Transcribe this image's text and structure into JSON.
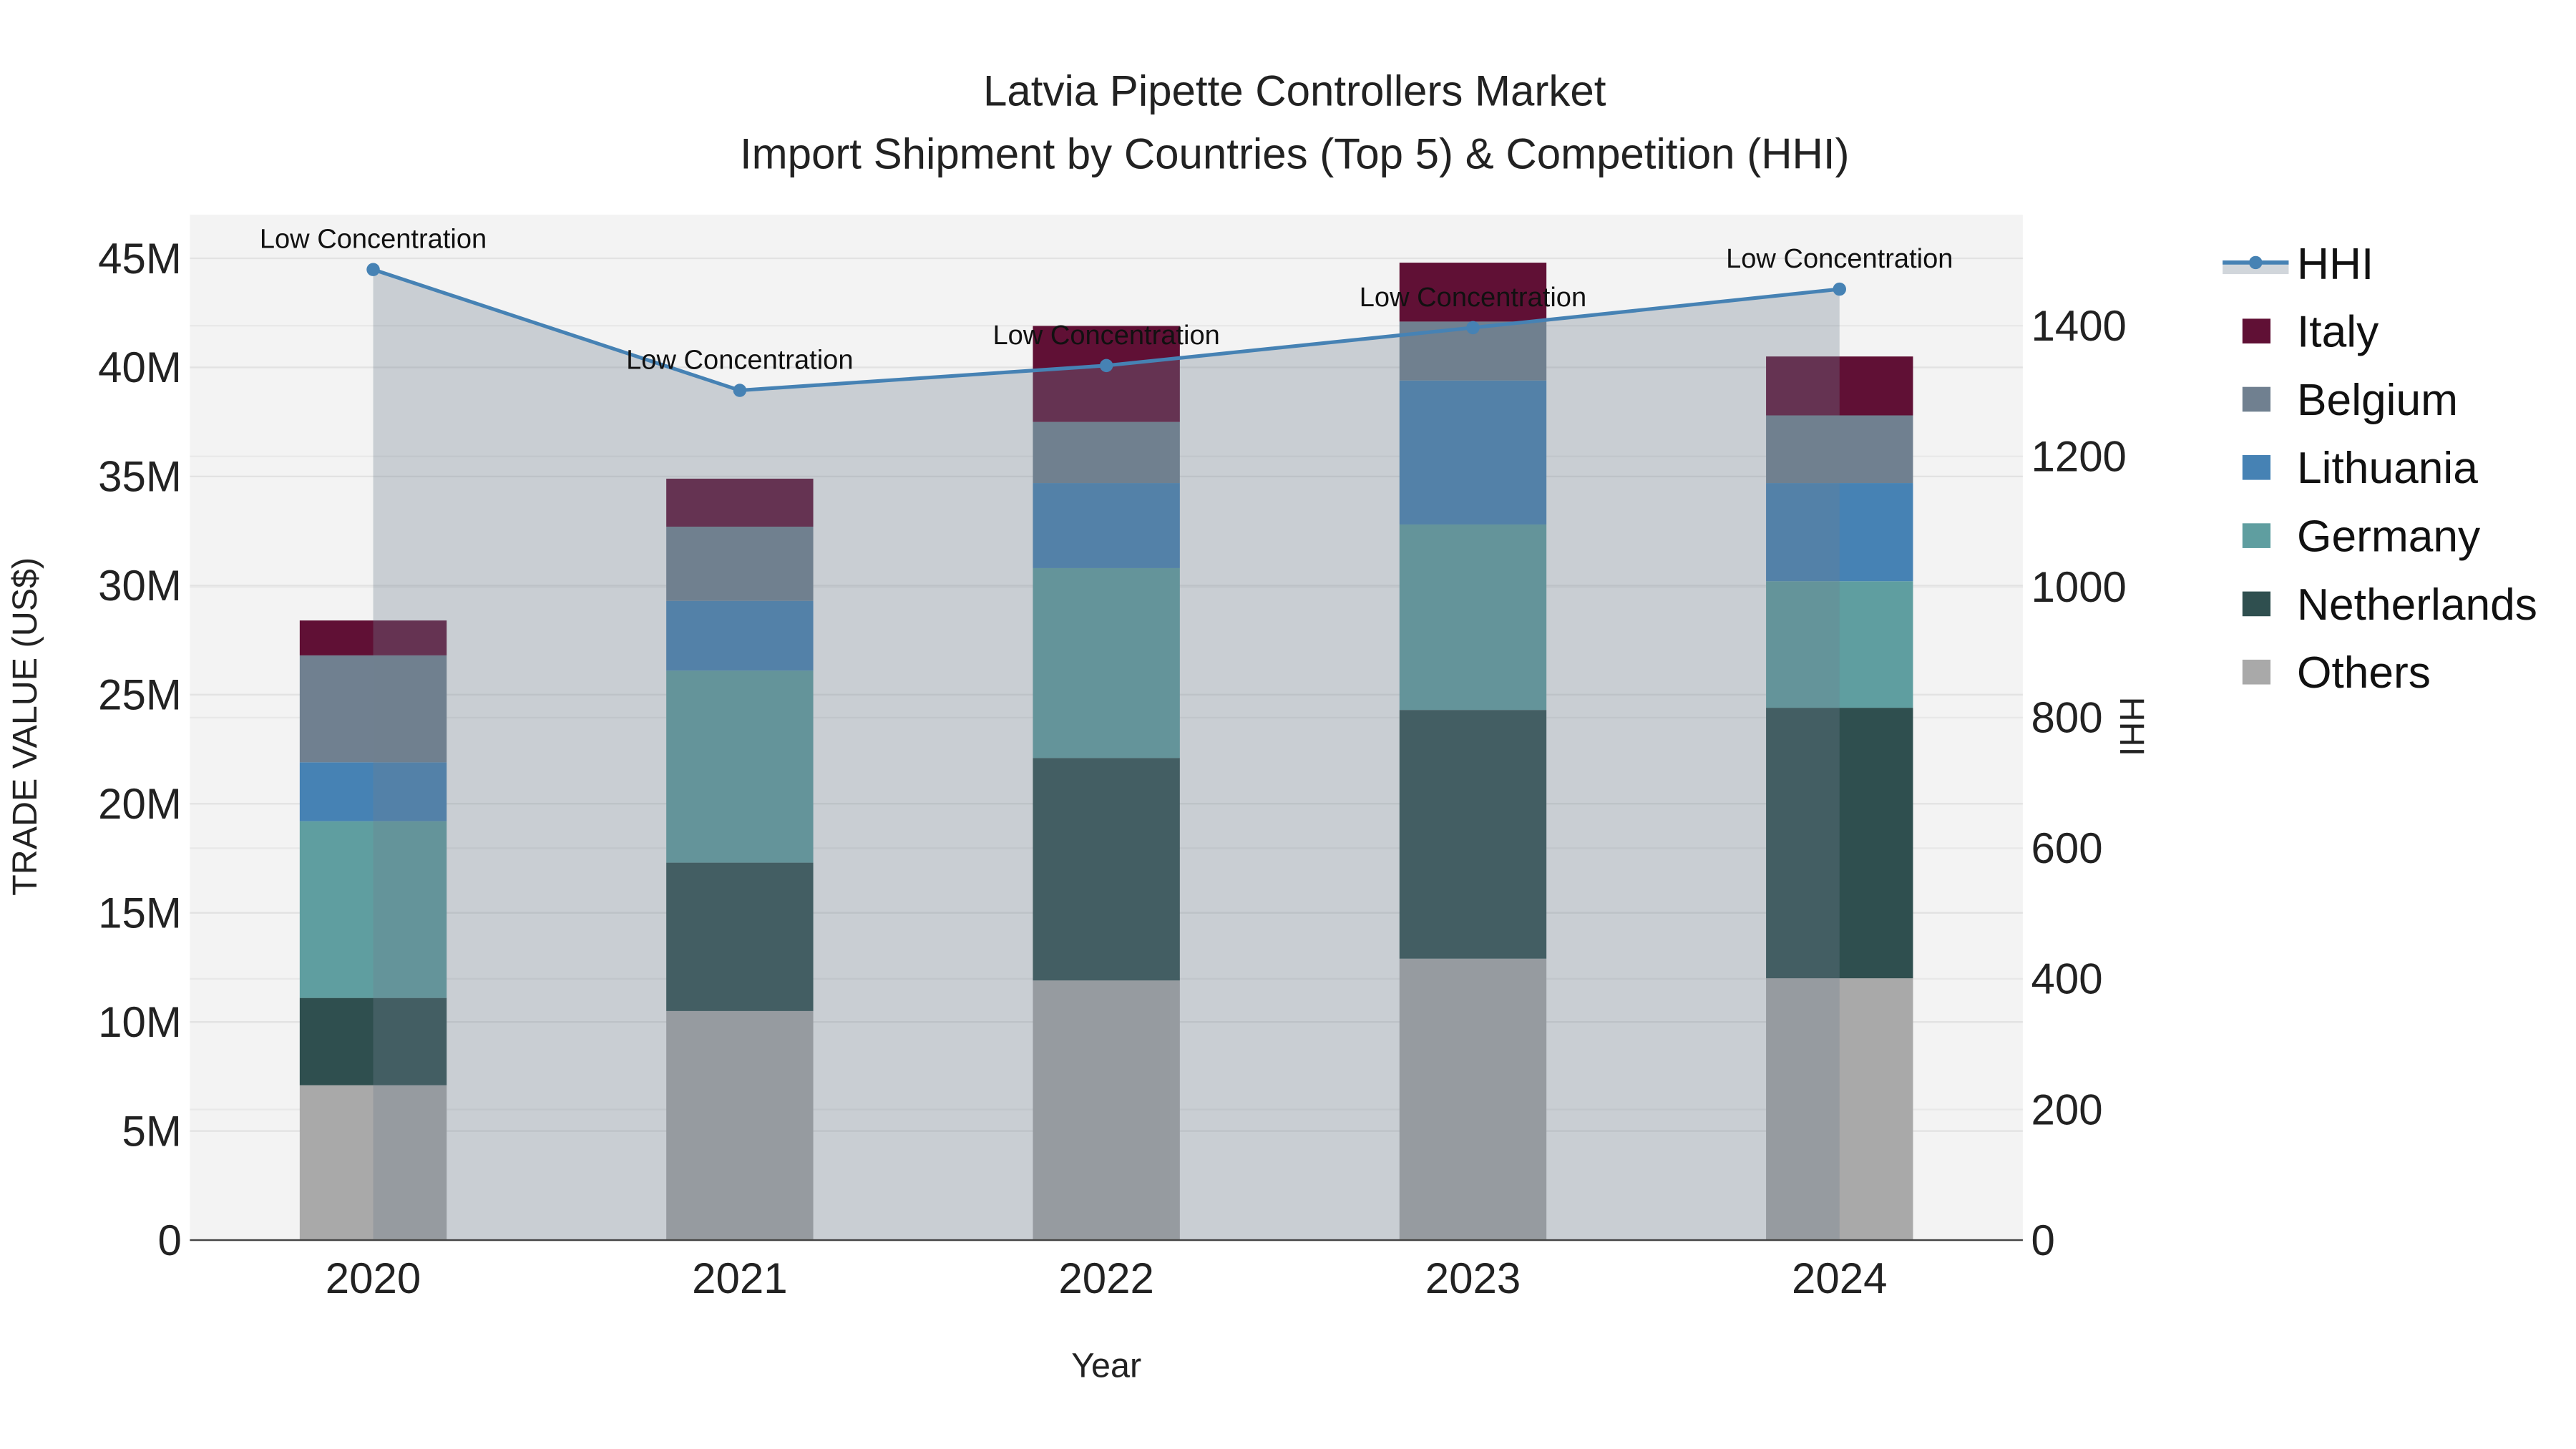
{
  "chart_data": {
    "type": "bar",
    "title": "Latvia Pipette Controllers Market",
    "subtitle": "Import Shipment by Countries (Top 5) & Competition (HHI)",
    "xlabel": "Year",
    "ylabel": "TRADE VALUE (US$)",
    "y2label": "HHI",
    "categories": [
      "2020",
      "2021",
      "2022",
      "2023",
      "2024"
    ],
    "ylim": [
      0,
      47
    ],
    "y_ticks": [
      0,
      5,
      10,
      15,
      20,
      25,
      30,
      35,
      40,
      45
    ],
    "y_tick_labels": [
      "0",
      "5M",
      "10M",
      "15M",
      "20M",
      "25M",
      "30M",
      "35M",
      "40M",
      "45M"
    ],
    "y2lim": [
      0,
      1570
    ],
    "y2_ticks": [
      0,
      200,
      400,
      600,
      800,
      1000,
      1200,
      1400
    ],
    "y2_tick_labels": [
      "0",
      "200",
      "400",
      "600",
      "800",
      "1000",
      "1200",
      "1400"
    ],
    "units": "million US$",
    "series": [
      {
        "name": "Others",
        "color": "#a9a9a9",
        "values": [
          7.1,
          10.5,
          11.9,
          12.9,
          12.0
        ]
      },
      {
        "name": "Netherlands",
        "color": "#2f4f4f",
        "values": [
          4.0,
          6.8,
          10.2,
          11.4,
          12.4
        ]
      },
      {
        "name": "Germany",
        "color": "#5f9ea0",
        "values": [
          8.1,
          8.8,
          8.7,
          8.5,
          5.8
        ]
      },
      {
        "name": "Lithuania",
        "color": "#4682b4",
        "values": [
          2.7,
          3.2,
          3.9,
          6.6,
          4.5
        ]
      },
      {
        "name": "Belgium",
        "color": "#708090",
        "values": [
          4.9,
          3.4,
          2.8,
          2.7,
          3.1
        ]
      },
      {
        "name": "Italy",
        "color": "#601035",
        "values": [
          1.6,
          2.2,
          4.4,
          2.7,
          2.7
        ]
      }
    ],
    "hhi": {
      "name": "HHI",
      "color": "#4682b4",
      "fill": "#708090",
      "values": [
        1486,
        1301,
        1339,
        1397,
        1456
      ],
      "annotations": [
        "Low Concentration",
        "Low Concentration",
        "Low Concentration",
        "Low Concentration",
        "Low Concentration"
      ]
    },
    "legend": [
      "HHI",
      "Italy",
      "Belgium",
      "Lithuania",
      "Germany",
      "Netherlands",
      "Others"
    ],
    "legend_position": "right",
    "grid": true
  }
}
